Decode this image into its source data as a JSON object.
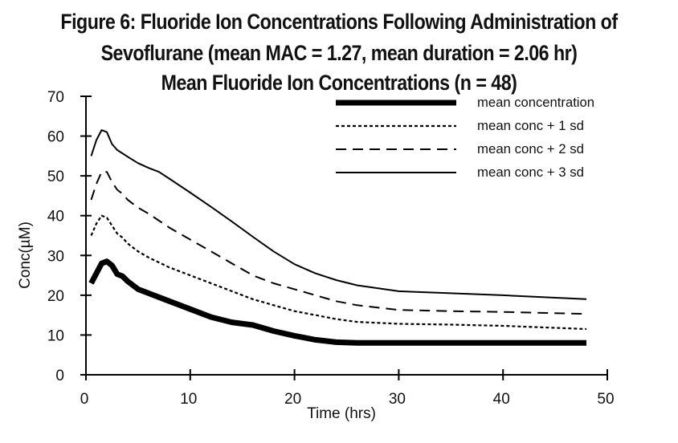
{
  "chart_data": {
    "type": "line",
    "title": "Figure 6: Fluoride Ion Concentrations Following Administration of",
    "subtitle": "Sevoflurane (mean MAC = 1.27, mean duration = 2.06 hr)",
    "subtitle2": "Mean Fluoride Ion Concentrations (n = 48)",
    "xlabel": "Time (hrs)",
    "ylabel": "Conc(µM)",
    "xlim": [
      0,
      50
    ],
    "ylim": [
      0,
      70
    ],
    "xticks": [
      "0",
      "10",
      "20",
      "30",
      "40",
      "50"
    ],
    "yticks": [
      "0",
      "10",
      "20",
      "30",
      "40",
      "50",
      "60",
      "70"
    ],
    "grid": false,
    "legend_position": "top-right",
    "series": [
      {
        "name": "mean concentration",
        "style": "thick-solid",
        "color": "#000000",
        "x": [
          0.5,
          1,
          1.5,
          2,
          2.5,
          3,
          3.5,
          4,
          5,
          6,
          8,
          10,
          12,
          14,
          16,
          18,
          20,
          22,
          24,
          26,
          30,
          35,
          40,
          48
        ],
        "y": [
          23,
          25.5,
          28,
          28.5,
          27.5,
          25.3,
          24.8,
          23.5,
          21.5,
          20.5,
          18.5,
          16.5,
          14.5,
          13.2,
          12.5,
          11,
          9.8,
          8.8,
          8.2,
          8,
          8,
          8,
          8,
          8
        ]
      },
      {
        "name": "mean conc + 1 sd",
        "style": "dotted",
        "color": "#000000",
        "x": [
          0.5,
          1,
          1.5,
          2,
          2.5,
          3,
          3.5,
          4,
          5,
          6,
          8,
          10,
          12,
          14,
          16,
          18,
          20,
          22,
          24,
          26,
          30,
          35,
          40,
          48
        ],
        "y": [
          35,
          38,
          40,
          39.5,
          37.5,
          35.5,
          34.5,
          33,
          31,
          29.5,
          27,
          25,
          23,
          21,
          19,
          17.5,
          16,
          15,
          14,
          13.3,
          12.8,
          12.6,
          12.3,
          11.5
        ]
      },
      {
        "name": "mean conc + 2 sd",
        "style": "dashed",
        "color": "#000000",
        "x": [
          0.5,
          1,
          1.5,
          2,
          2.5,
          3,
          3.5,
          4,
          5,
          6,
          8,
          10,
          12,
          14,
          16,
          18,
          20,
          22,
          24,
          26,
          30,
          35,
          40,
          48
        ],
        "y": [
          44,
          48,
          51,
          51,
          48.5,
          46.5,
          45.5,
          44,
          42,
          40.5,
          37,
          34,
          31,
          28,
          25,
          23,
          21.5,
          20,
          18.5,
          17.5,
          16.3,
          16,
          15.8,
          15.3
        ]
      },
      {
        "name": "mean conc + 3 sd",
        "style": "solid",
        "color": "#000000",
        "x": [
          0.5,
          1,
          1.5,
          2,
          2.5,
          3,
          4,
          5,
          6,
          7,
          8,
          10,
          12,
          14,
          16,
          18,
          20,
          22,
          24,
          26,
          30,
          35,
          40,
          48
        ],
        "y": [
          55,
          59,
          61.5,
          61,
          58,
          56.5,
          54.8,
          53.2,
          52,
          51,
          49.3,
          45.8,
          42.2,
          38.5,
          34.7,
          31,
          27.8,
          25.5,
          23.8,
          22.5,
          21,
          20.5,
          20,
          19
        ]
      }
    ]
  }
}
